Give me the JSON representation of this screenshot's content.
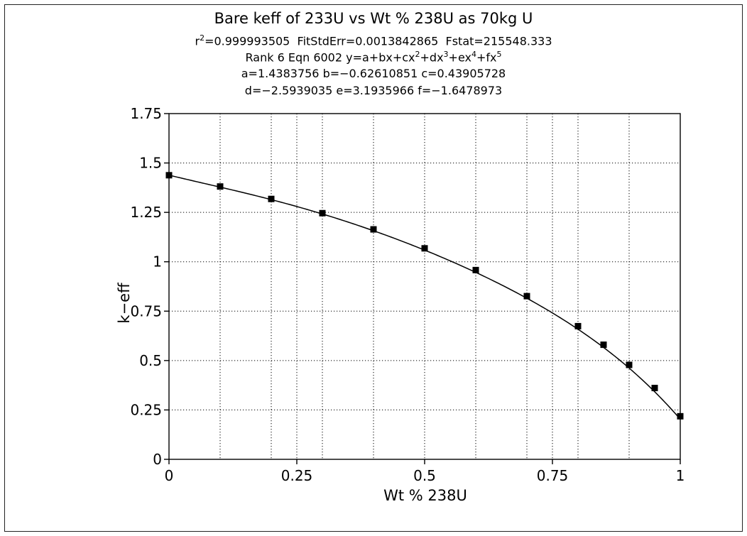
{
  "chart_data": {
    "type": "scatter",
    "title": "Bare keff of 233U vs Wt % 238U as 70kg U",
    "fit_stats": {
      "r2_label": "r",
      "r2_exp": "2",
      "r2_value": "=0.999993505",
      "fit_std_err": "FitStdErr=0.0013842865",
      "fstat": "Fstat=215548.333"
    },
    "equation": {
      "prefix": "Rank 6  Eqn 6002  y=a+bx+cx",
      "e2": "2",
      "p3": "+dx",
      "e3": "3",
      "p4": "+ex",
      "e4": "4",
      "p5": "+fx",
      "e5": "5"
    },
    "coefficients_line1": "a=1.4383756 b=−0.62610851 c=0.43905728",
    "coefficients_line2": "d=−2.5939035 e=3.1935966 f=−1.6478973",
    "coefficients": {
      "a": 1.4383756,
      "b": -0.62610851,
      "c": 0.43905728,
      "d": -2.5939035,
      "e": 3.1935966,
      "f": -1.6478973
    },
    "xlabel": "Wt % 238U",
    "ylabel": "k−eff",
    "xlim": [
      0,
      1
    ],
    "ylim": [
      0,
      1.75
    ],
    "x_ticks": [
      {
        "v": 0,
        "label": "0"
      },
      {
        "v": 0.25,
        "label": "0.25"
      },
      {
        "v": 0.5,
        "label": "0.5"
      },
      {
        "v": 0.75,
        "label": "0.75"
      },
      {
        "v": 1,
        "label": "1"
      }
    ],
    "y_ticks": [
      {
        "v": 0,
        "label": "0"
      },
      {
        "v": 0.25,
        "label": "0.25"
      },
      {
        "v": 0.5,
        "label": "0.5"
      },
      {
        "v": 0.75,
        "label": "0.75"
      },
      {
        "v": 1,
        "label": "1"
      },
      {
        "v": 1.25,
        "label": "1.25"
      },
      {
        "v": 1.5,
        "label": "1.5"
      },
      {
        "v": 1.75,
        "label": "1.75"
      }
    ],
    "x_grid_minor": [
      0.1,
      0.2,
      0.3,
      0.4,
      0.6,
      0.7,
      0.8,
      0.9
    ],
    "grid": true,
    "series": [
      {
        "x": [
          0,
          0.1,
          0.2,
          0.3,
          0.4,
          0.5,
          0.6,
          0.7,
          0.8,
          0.85,
          0.9,
          0.95,
          1.0
        ],
        "y": [
          1.438,
          1.381,
          1.318,
          1.246,
          1.164,
          1.068,
          0.958,
          0.826,
          0.674,
          0.58,
          0.478,
          0.361,
          0.218
        ]
      }
    ],
    "colors": {
      "line": "#000000",
      "marker": "#000000",
      "grid": "#000000"
    }
  }
}
